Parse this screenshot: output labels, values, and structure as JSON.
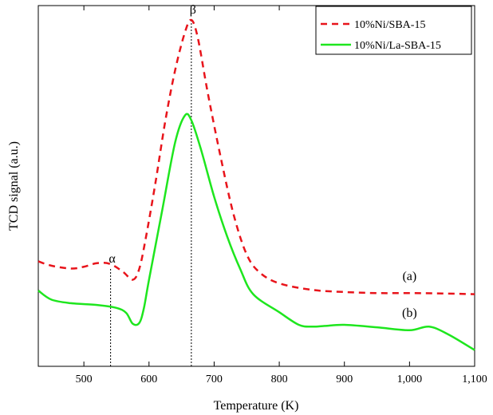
{
  "chart_data": {
    "type": "line",
    "xlabel": "Temperature (K)",
    "ylabel": "TCD signal (a.u.)",
    "xlim": [
      430,
      1100
    ],
    "ylim": [
      0,
      1
    ],
    "xticks": [
      500,
      600,
      700,
      800,
      900,
      1000,
      1100
    ],
    "xtick_labels": [
      "500",
      "600",
      "700",
      "800",
      "900",
      "1,000",
      "1,100"
    ],
    "legend_position": "top-right",
    "series": [
      {
        "name": "10%Ni/SBA-15",
        "color": "#e8141b",
        "style": "dashed",
        "x": [
          430,
          450,
          480,
          500,
          520,
          540,
          560,
          575,
          585,
          595,
          610,
          625,
          640,
          655,
          665,
          675,
          690,
          710,
          730,
          750,
          770,
          800,
          850,
          900,
          950,
          1000,
          1050,
          1100
        ],
        "y": [
          0.291,
          0.279,
          0.271,
          0.276,
          0.286,
          0.284,
          0.262,
          0.24,
          0.27,
          0.355,
          0.51,
          0.68,
          0.82,
          0.925,
          0.96,
          0.91,
          0.76,
          0.58,
          0.42,
          0.31,
          0.26,
          0.23,
          0.212,
          0.206,
          0.203,
          0.203,
          0.202,
          0.2
        ]
      },
      {
        "name": "10%Ni/La-SBA-15",
        "color": "#1ee61e",
        "style": "solid",
        "x": [
          430,
          450,
          480,
          520,
          550,
          565,
          575,
          585,
          592,
          600,
          620,
          640,
          655,
          665,
          680,
          700,
          720,
          740,
          760,
          800,
          830,
          850,
          870,
          900,
          950,
          1000,
          1030,
          1060,
          1100
        ],
        "y": [
          0.21,
          0.185,
          0.175,
          0.17,
          0.162,
          0.148,
          0.118,
          0.12,
          0.16,
          0.24,
          0.43,
          0.62,
          0.695,
          0.682,
          0.6,
          0.47,
          0.36,
          0.27,
          0.2,
          0.15,
          0.115,
          0.11,
          0.112,
          0.115,
          0.108,
          0.1,
          0.11,
          0.088,
          0.045
        ]
      }
    ],
    "annotations": [
      {
        "text": "α",
        "x": 541,
        "y_from": 0.0,
        "y_to": 0.27,
        "line": "dotted"
      },
      {
        "text": "β",
        "x": 665,
        "y_from": 0.0,
        "y_to": 0.96,
        "line": "dotted"
      },
      {
        "text": "(a)",
        "x": 1000,
        "y": 0.25
      },
      {
        "text": "(b)",
        "x": 1000,
        "y": 0.148
      }
    ]
  }
}
